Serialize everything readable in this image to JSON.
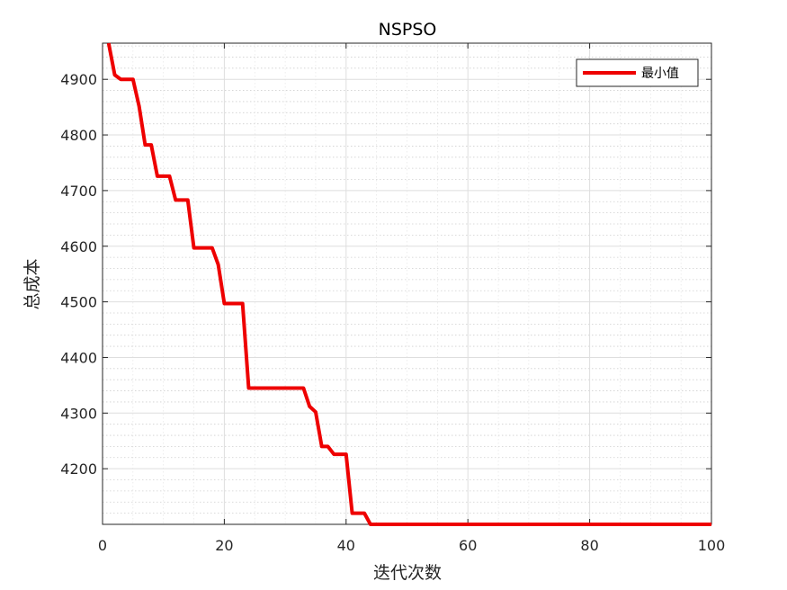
{
  "chart_data": {
    "type": "line",
    "title": "NSPSO",
    "xlabel": "迭代次数",
    "ylabel": "总成本",
    "xlim": [
      0,
      100
    ],
    "ylim": [
      4100,
      4965
    ],
    "xticks": [
      0,
      20,
      40,
      60,
      80,
      100
    ],
    "yticks": [
      4200,
      4300,
      4400,
      4500,
      4600,
      4700,
      4800,
      4900
    ],
    "grid": "on",
    "minor_grid": "on",
    "legend_position": "top-right",
    "line_color": "#ee0000",
    "series": [
      {
        "name": "最小值",
        "x": [
          1,
          2,
          3,
          4,
          5,
          6,
          7,
          8,
          9,
          10,
          11,
          12,
          13,
          14,
          15,
          16,
          17,
          18,
          19,
          20,
          21,
          22,
          23,
          24,
          25,
          26,
          27,
          28,
          29,
          30,
          31,
          32,
          33,
          34,
          35,
          36,
          37,
          38,
          39,
          40,
          41,
          42,
          43,
          44,
          45,
          46,
          47,
          48,
          49,
          50,
          51,
          52,
          53,
          54,
          55,
          56,
          57,
          58,
          59,
          60,
          61,
          62,
          63,
          64,
          65,
          66,
          67,
          68,
          69,
          70,
          71,
          72,
          73,
          74,
          75,
          76,
          77,
          78,
          79,
          80,
          81,
          82,
          83,
          84,
          85,
          86,
          87,
          88,
          89,
          90,
          91,
          92,
          93,
          94,
          95,
          96,
          97,
          98,
          99,
          100
        ],
        "values": [
          4965,
          4908,
          4900,
          4900,
          4900,
          4852,
          4782,
          4782,
          4726,
          4726,
          4726,
          4683,
          4683,
          4683,
          4597,
          4597,
          4597,
          4597,
          4567,
          4497,
          4497,
          4497,
          4497,
          4345,
          4345,
          4345,
          4345,
          4345,
          4345,
          4345,
          4345,
          4345,
          4345,
          4312,
          4302,
          4240,
          4240,
          4226,
          4226,
          4226,
          4120,
          4120,
          4120,
          4100,
          4100,
          4100,
          4100,
          4100,
          4100,
          4100,
          4100,
          4100,
          4100,
          4100,
          4100,
          4100,
          4100,
          4100,
          4100,
          4100,
          4100,
          4100,
          4100,
          4100,
          4100,
          4100,
          4100,
          4100,
          4100,
          4100,
          4100,
          4100,
          4100,
          4100,
          4100,
          4100,
          4100,
          4100,
          4100,
          4100,
          4100,
          4100,
          4100,
          4100,
          4100,
          4100,
          4100,
          4100,
          4100,
          4100,
          4100,
          4100,
          4100,
          4100,
          4100,
          4100,
          4100,
          4100,
          4100,
          4100
        ]
      }
    ]
  }
}
